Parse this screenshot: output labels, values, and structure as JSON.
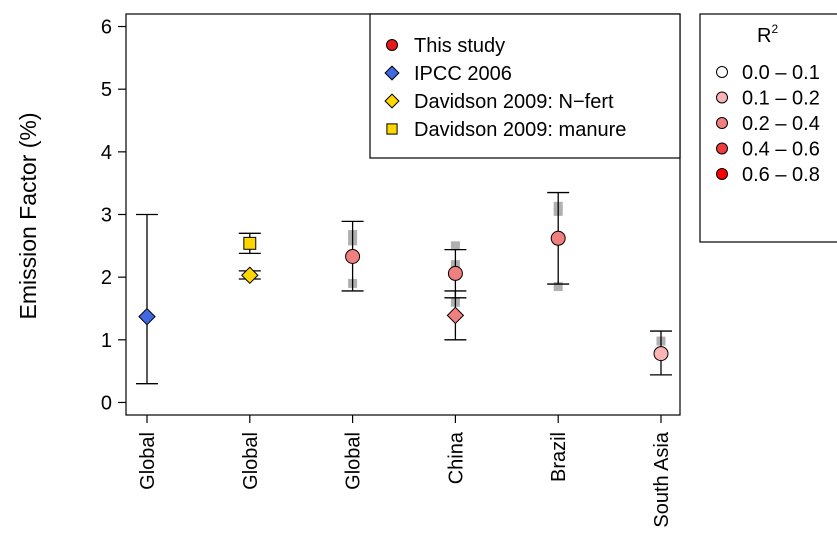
{
  "chart_data": {
    "type": "scatter",
    "ylabel": "Emission Factor (%)",
    "xlabel": "",
    "ylim": [
      -0.2,
      6.2
    ],
    "yticks": [
      0,
      1,
      2,
      3,
      4,
      5,
      6
    ],
    "grid": false,
    "categories": [
      "Global",
      "Global",
      "Global",
      "China",
      "Brazil",
      "South Asia"
    ],
    "legend": {
      "position": "top-right-inside",
      "entries": [
        {
          "label": "This study",
          "marker": "circle",
          "fill": "#e41a1c"
        },
        {
          "label": "IPCC 2006",
          "marker": "diamond",
          "fill": "#4169e1"
        },
        {
          "label": "Davidson 2009: N−fert",
          "marker": "diamond",
          "fill": "#ffd700"
        },
        {
          "label": "Davidson 2009: manure",
          "marker": "square",
          "fill": "#ffd700"
        }
      ]
    },
    "r2_legend": {
      "title": "R",
      "title_sup": "2",
      "position": "right-outside",
      "entries": [
        {
          "label": "0.0 – 0.1",
          "fill": "#ffffff"
        },
        {
          "label": "0.1 – 0.2",
          "fill": "#fbb4b4"
        },
        {
          "label": "0.2 – 0.4",
          "fill": "#f08080"
        },
        {
          "label": "0.4 – 0.6",
          "fill": "#ee3b3b"
        },
        {
          "label": "0.6 – 0.8",
          "fill": "#ff0000"
        }
      ]
    },
    "series": [
      {
        "name": "IPCC 2006",
        "marker": "diamond",
        "fill": "#4169e1",
        "points": [
          {
            "x": 0,
            "y": 1.37,
            "lo": 0.3,
            "hi": 3.0
          }
        ]
      },
      {
        "name": "Davidson 2009: N−fert",
        "marker": "diamond",
        "fill": "#ffd700",
        "points": [
          {
            "x": 1,
            "y": 2.03,
            "lo": 1.97,
            "hi": 2.1
          }
        ]
      },
      {
        "name": "Davidson 2009: manure",
        "marker": "square",
        "fill": "#ffd700",
        "points": [
          {
            "x": 1,
            "y": 2.54,
            "lo": 2.38,
            "hi": 2.7
          }
        ]
      },
      {
        "name": "This study",
        "marker": "circle",
        "points": [
          {
            "x": 2,
            "y": 2.33,
            "lo": 1.78,
            "hi": 2.89,
            "fill": "#f08080"
          },
          {
            "x": 3,
            "y": 2.06,
            "lo": 1.67,
            "hi": 2.44,
            "fill": "#f08080"
          },
          {
            "x": 4,
            "y": 2.62,
            "lo": 1.89,
            "hi": 3.35,
            "fill": "#f08080"
          },
          {
            "x": 5,
            "y": 0.78,
            "lo": 0.44,
            "hi": 1.14,
            "fill": "#fbb4b4"
          }
        ]
      },
      {
        "name": "",
        "marker": "diamond",
        "points": [
          {
            "x": 3,
            "y": 1.39,
            "lo": 1.0,
            "hi": 1.78,
            "fill": "#f08080"
          }
        ]
      }
    ],
    "background_points": {
      "color": "#b0b0b0",
      "points": [
        {
          "x": 2,
          "y": 2.68
        },
        {
          "x": 2,
          "y": 2.58
        },
        {
          "x": 2,
          "y": 1.9
        },
        {
          "x": 3,
          "y": 2.5
        },
        {
          "x": 3,
          "y": 2.2
        },
        {
          "x": 3,
          "y": 1.6
        },
        {
          "x": 4,
          "y": 3.13
        },
        {
          "x": 4,
          "y": 3.05
        },
        {
          "x": 4,
          "y": 1.85
        },
        {
          "x": 5,
          "y": 0.98
        }
      ]
    }
  }
}
